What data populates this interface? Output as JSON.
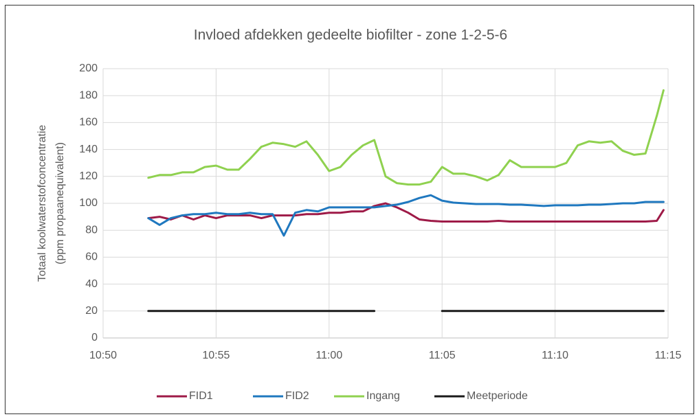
{
  "chart_data": {
    "type": "line",
    "title": "Invloed afdekken gedeelte biofilter - zone 1-2-5-6",
    "y_label": [
      "Totaal koolwaterstofconcentratie",
      "(ppm propaanequivalent)"
    ],
    "x": [
      652,
      652.5,
      653,
      653.5,
      654,
      654.5,
      655,
      655.5,
      656,
      656.5,
      657,
      657.5,
      658,
      658.5,
      659,
      659.5,
      660,
      660.5,
      661,
      661.5,
      662,
      662.5,
      663,
      663.5,
      664,
      664.5,
      665,
      665.5,
      666,
      666.5,
      667,
      667.5,
      668,
      668.5,
      669,
      669.5,
      670,
      670.5,
      671,
      671.5,
      672,
      672.5,
      673,
      673.5,
      674,
      674.5,
      674.8
    ],
    "series": [
      {
        "name": "FID1",
        "color": "#9e1a47",
        "values": [
          89,
          90,
          88,
          91,
          88,
          91,
          89,
          91,
          91,
          91,
          89,
          91,
          91,
          91,
          92,
          92,
          93,
          93,
          94,
          94,
          98,
          100,
          97,
          93,
          88,
          87,
          86.5,
          86.5,
          86.5,
          86.5,
          86.5,
          87,
          86.5,
          86.5,
          86.5,
          86.5,
          86.5,
          86.5,
          86.5,
          86.5,
          86.5,
          86.5,
          86.5,
          86.5,
          86.5,
          87,
          95
        ]
      },
      {
        "name": "FID2",
        "color": "#1f78bf",
        "values": [
          89,
          84,
          89,
          91,
          92,
          92,
          93,
          92,
          92,
          93,
          92,
          92,
          76,
          93,
          95,
          94,
          97,
          97,
          97,
          97,
          97,
          98,
          99,
          101,
          104,
          106,
          102,
          100.5,
          100,
          99.5,
          99.5,
          99.5,
          99,
          99,
          98.5,
          98,
          98.5,
          98.5,
          98.5,
          99,
          99,
          99.5,
          100,
          100,
          101,
          101,
          101
        ]
      },
      {
        "name": "Ingang",
        "color": "#8fd14f",
        "values": [
          119,
          121,
          121,
          123,
          123,
          127,
          128,
          125,
          125,
          133,
          142,
          145,
          144,
          142,
          146,
          136,
          124,
          127,
          136,
          143,
          147,
          120,
          115,
          114,
          114,
          116,
          127,
          122,
          122,
          120,
          117,
          121,
          132,
          127,
          127,
          127,
          127,
          130,
          143,
          146,
          145,
          146,
          139,
          136,
          137,
          165,
          184
        ]
      },
      {
        "name": "Meetperiode",
        "color": "#1a1a1a",
        "values": [
          20,
          20,
          20,
          20,
          20,
          20,
          20,
          20,
          20,
          20,
          20,
          20,
          20,
          20,
          20,
          20,
          20,
          20,
          20,
          20,
          20,
          null,
          null,
          null,
          null,
          null,
          20,
          20,
          20,
          20,
          20,
          20,
          20,
          20,
          20,
          20,
          20,
          20,
          20,
          20,
          20,
          20,
          20,
          20,
          20,
          20,
          20
        ]
      }
    ],
    "xlim": [
      650,
      675
    ],
    "xticks": [
      {
        "value": 650,
        "label": "10:50"
      },
      {
        "value": 655,
        "label": "10:55"
      },
      {
        "value": 660,
        "label": "11:00"
      },
      {
        "value": 665,
        "label": "11:05"
      },
      {
        "value": 670,
        "label": "11:10"
      },
      {
        "value": 675,
        "label": "11:15"
      }
    ],
    "ylim": [
      0,
      200
    ],
    "yticks": [
      0,
      20,
      40,
      60,
      80,
      100,
      120,
      140,
      160,
      180,
      200
    ],
    "grid": true,
    "legend": "bottom"
  }
}
